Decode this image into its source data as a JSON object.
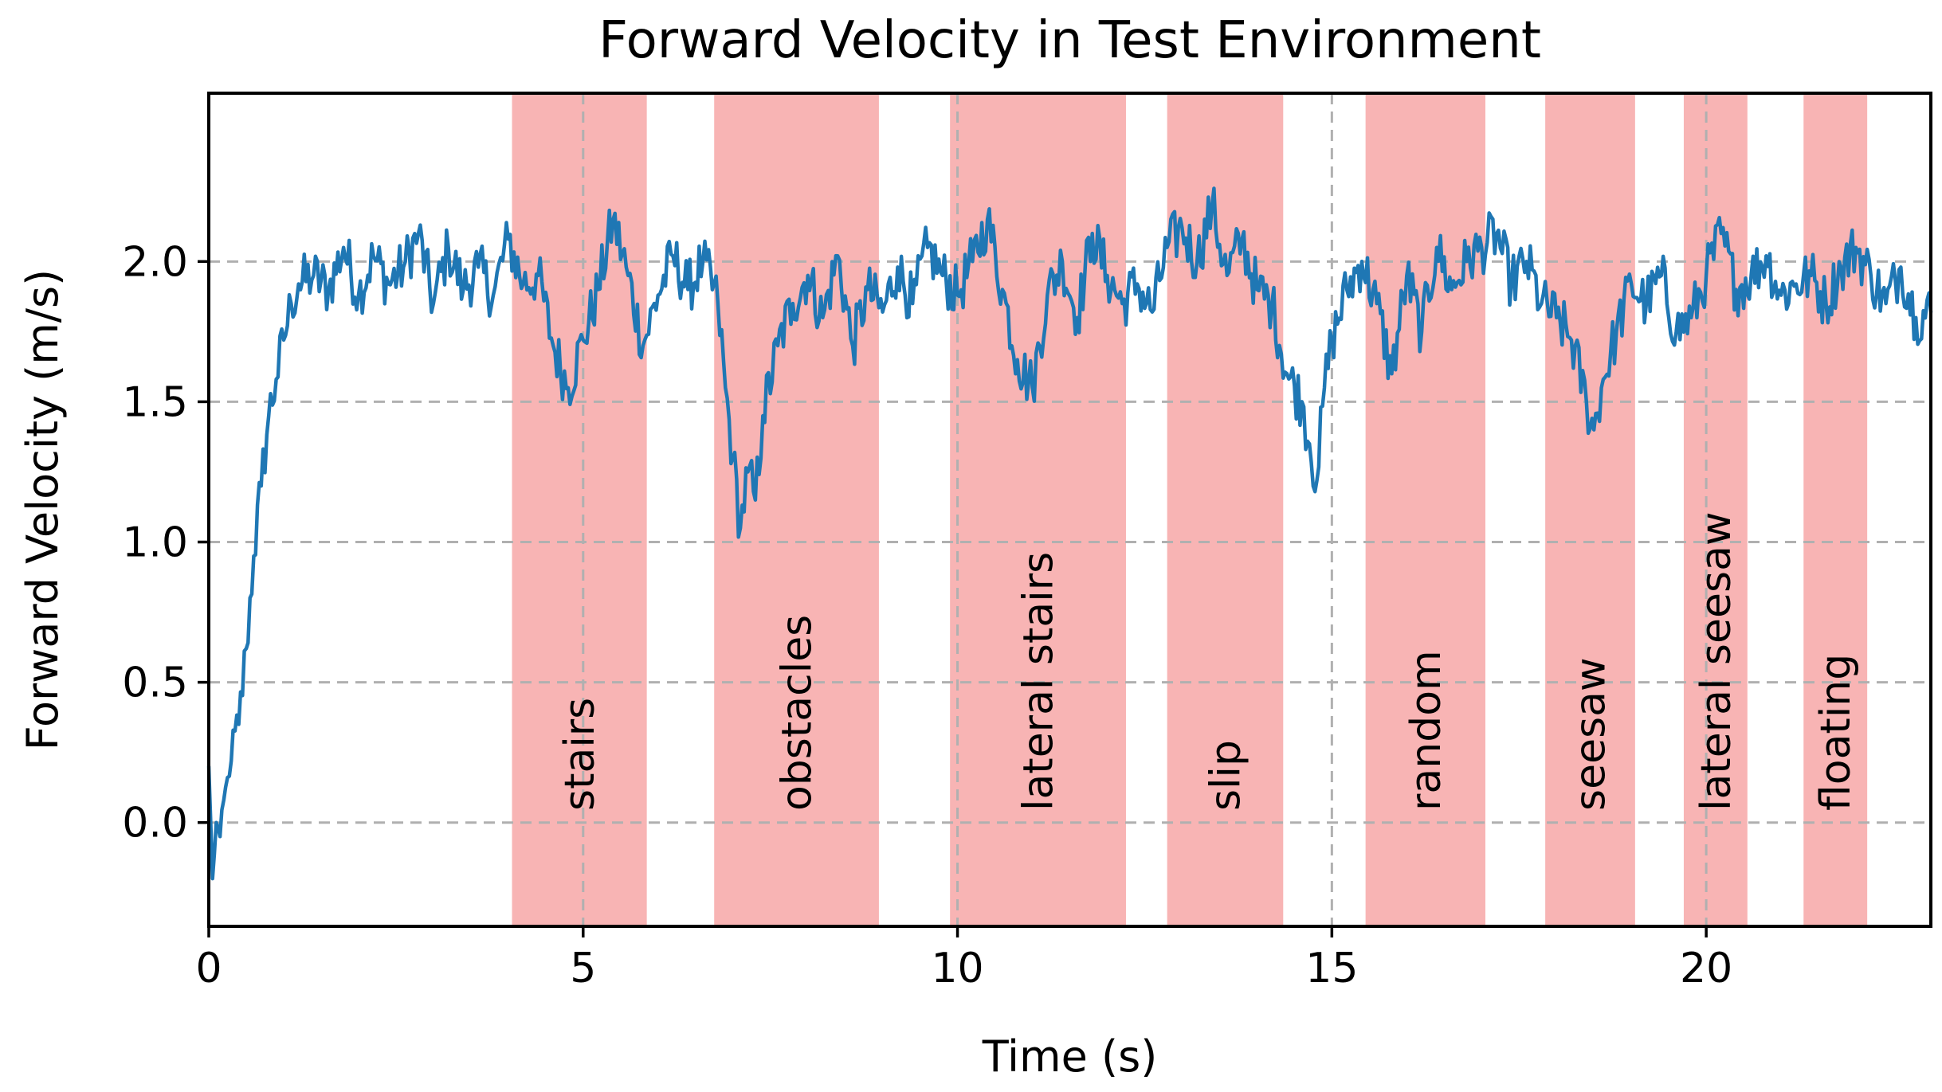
{
  "chart_data": {
    "type": "line",
    "title": "Forward Velocity in Test Environment",
    "xlabel": "Time (s)",
    "ylabel": "Forward Velocity (m/s)",
    "xlim": [
      0,
      23
    ],
    "ylim": [
      -0.37,
      2.6
    ],
    "xticks": [
      0,
      5,
      10,
      15,
      20
    ],
    "xtick_labels": [
      "0",
      "5",
      "10",
      "15",
      "20"
    ],
    "yticks": [
      0.0,
      0.5,
      1.0,
      1.5,
      2.0
    ],
    "ytick_labels": [
      "0.0",
      "0.5",
      "1.0",
      "1.5",
      "2.0"
    ],
    "grid": true,
    "line_color": "#1f77b4",
    "region_color": "#f8b4b4",
    "regions": [
      {
        "label": "stairs",
        "start": 4.05,
        "end": 5.85
      },
      {
        "label": "obstacles",
        "start": 6.75,
        "end": 8.95
      },
      {
        "label": "lateral stairs",
        "start": 9.9,
        "end": 12.25
      },
      {
        "label": "slip",
        "start": 12.8,
        "end": 14.35
      },
      {
        "label": "random",
        "start": 15.45,
        "end": 17.05
      },
      {
        "label": "seesaw",
        "start": 17.85,
        "end": 19.05
      },
      {
        "label": "lateral seesaw",
        "start": 19.7,
        "end": 20.55
      },
      {
        "label": "floating",
        "start": 21.3,
        "end": 22.15
      }
    ],
    "series": [
      {
        "name": "forward velocity",
        "x": [
          0.0,
          0.05,
          0.1,
          0.15,
          0.2,
          0.3,
          0.4,
          0.5,
          0.6,
          0.7,
          0.8,
          0.9,
          1.0,
          1.1,
          1.2,
          1.4,
          1.6,
          1.8,
          2.0,
          2.2,
          2.4,
          2.6,
          2.8,
          3.0,
          3.2,
          3.4,
          3.6,
          3.8,
          4.0,
          4.2,
          4.4,
          4.6,
          4.8,
          5.0,
          5.2,
          5.4,
          5.6,
          5.8,
          6.0,
          6.2,
          6.4,
          6.6,
          6.8,
          6.9,
          7.0,
          7.1,
          7.2,
          7.3,
          7.4,
          7.6,
          7.8,
          8.0,
          8.2,
          8.4,
          8.6,
          8.8,
          9.0,
          9.2,
          9.4,
          9.6,
          9.8,
          10.0,
          10.2,
          10.4,
          10.6,
          10.8,
          11.0,
          11.2,
          11.4,
          11.6,
          11.8,
          12.0,
          12.2,
          12.4,
          12.6,
          12.8,
          13.0,
          13.2,
          13.4,
          13.6,
          13.8,
          14.0,
          14.2,
          14.4,
          14.6,
          14.7,
          14.8,
          14.9,
          15.0,
          15.2,
          15.4,
          15.6,
          15.8,
          16.0,
          16.2,
          16.4,
          16.6,
          16.8,
          17.0,
          17.2,
          17.4,
          17.6,
          17.8,
          18.0,
          18.2,
          18.4,
          18.5,
          18.6,
          18.8,
          19.0,
          19.2,
          19.4,
          19.6,
          19.8,
          20.0,
          20.2,
          20.4,
          20.6,
          20.8,
          21.0,
          21.2,
          21.4,
          21.6,
          21.8,
          22.0,
          22.2,
          22.4,
          22.6,
          22.8,
          23.0
        ],
        "y": [
          0.2,
          -0.2,
          0.0,
          -0.05,
          0.08,
          0.22,
          0.35,
          0.62,
          0.95,
          1.2,
          1.45,
          1.58,
          1.72,
          1.85,
          1.92,
          1.95,
          1.9,
          2.05,
          1.88,
          2.02,
          1.92,
          1.98,
          2.1,
          1.85,
          2.05,
          1.9,
          1.98,
          1.88,
          2.08,
          1.92,
          1.95,
          1.7,
          1.55,
          1.72,
          1.9,
          2.15,
          1.95,
          1.7,
          1.88,
          2.02,
          1.9,
          2.0,
          1.85,
          1.55,
          1.3,
          1.05,
          1.25,
          1.15,
          1.45,
          1.7,
          1.85,
          1.95,
          1.8,
          2.02,
          1.7,
          1.9,
          1.82,
          1.98,
          1.85,
          2.05,
          1.95,
          1.88,
          2.0,
          2.15,
          1.9,
          1.65,
          1.55,
          1.88,
          2.0,
          1.8,
          2.1,
          1.95,
          1.85,
          1.92,
          1.82,
          2.05,
          2.12,
          2.0,
          2.2,
          1.95,
          2.08,
          1.9,
          1.85,
          1.6,
          1.5,
          1.35,
          1.22,
          1.55,
          1.72,
          1.9,
          2.0,
          1.85,
          1.6,
          1.95,
          1.75,
          2.05,
          1.9,
          2.0,
          2.05,
          2.1,
          1.92,
          2.0,
          1.85,
          1.8,
          1.72,
          1.5,
          1.4,
          1.55,
          1.75,
          1.92,
          1.85,
          1.95,
          1.75,
          1.8,
          1.95,
          2.1,
          1.9,
          1.95,
          2.02,
          1.88,
          1.92,
          1.95,
          1.85,
          1.98,
          2.05,
          1.95,
          1.85,
          1.98,
          1.8,
          1.82
        ]
      }
    ]
  }
}
